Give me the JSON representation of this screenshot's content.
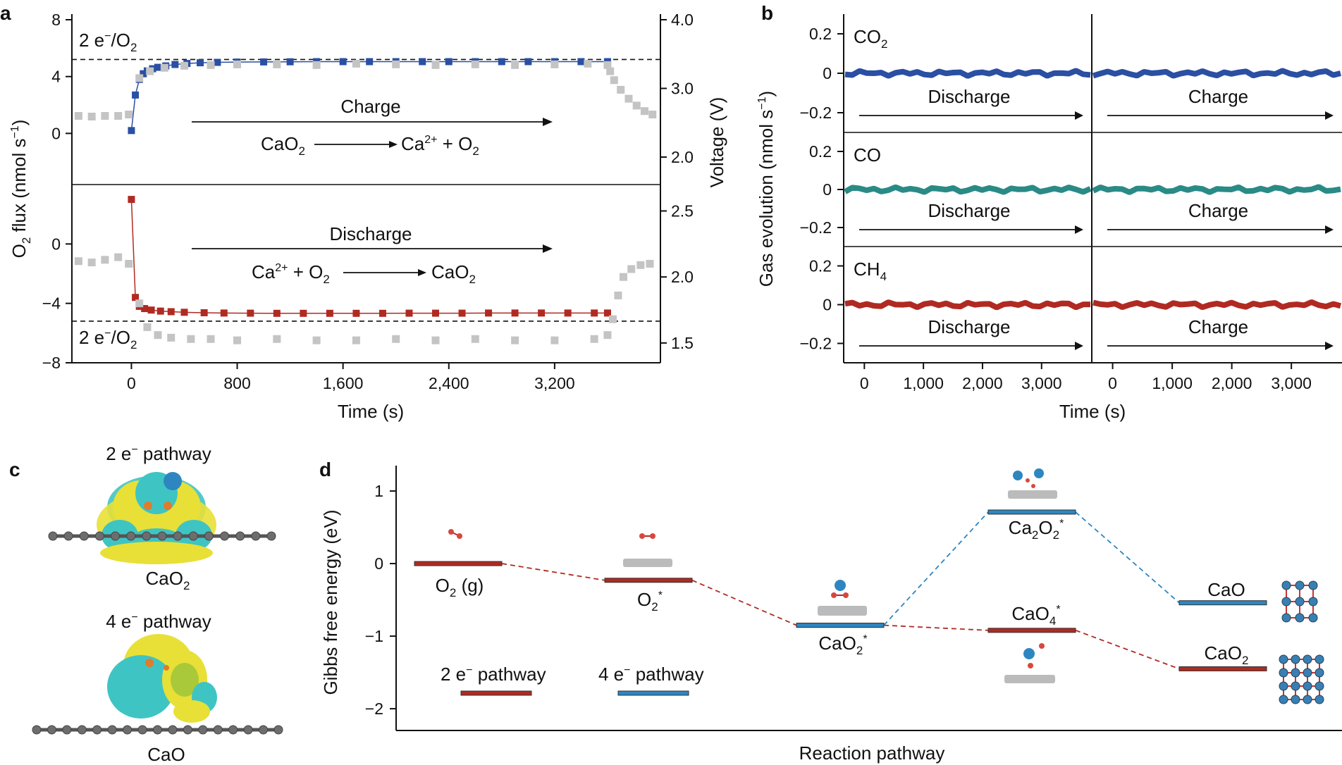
{
  "figure": {
    "panel_letters": [
      "a",
      "b",
      "c",
      "d"
    ],
    "colors": {
      "blue": "#2a4fa3",
      "red": "#b02a22",
      "teal": "#2a8a86",
      "gray": "#c4c4c4",
      "light_blue": "#2e86c1",
      "sky": "#3aa8d8",
      "yellow": "#e8e036",
      "cyan": "#3fc4c4"
    }
  },
  "panel_a": {
    "ylabel_left_main": "O",
    "ylabel_left_sub": "2",
    "ylabel_left_rest": " flux (nmol s",
    "ylabel_left_sup": "−1",
    "ylabel_left_close": ")",
    "ylabel_right": "Voltage (V)",
    "xlabel": "Time (s)",
    "ref_label_main": "2 e",
    "ref_label_sup": "−",
    "ref_label_rest": "/O",
    "ref_label_sub": "2",
    "top": {
      "arrow_label": "Charge",
      "reaction_left_main": "CaO",
      "reaction_left_sub": "2",
      "reaction_right_main": "Ca",
      "reaction_right_sup": "2+",
      "reaction_right_rest": " + O",
      "reaction_right_sub": "2"
    },
    "bottom": {
      "arrow_label": "Discharge",
      "reaction_left_main": "Ca",
      "reaction_left_sup": "2+",
      "reaction_left_rest": " + O",
      "reaction_left_sub": "2",
      "reaction_right_main": "CaO",
      "reaction_right_sub": "2"
    }
  },
  "panel_b": {
    "ylabel": "Gas evolution (nmol s",
    "ylabel_sup": "−1",
    "ylabel_close": ")",
    "xlabel": "Time (s)",
    "gases": [
      {
        "main": "CO",
        "sub": "2"
      },
      {
        "main": "CO",
        "sub": ""
      },
      {
        "main": "CH",
        "sub": "4"
      }
    ],
    "discharge_label": "Discharge",
    "charge_label": "Charge"
  },
  "panel_c": {
    "title_2e_main": "2 e",
    "title_2e_sup": "−",
    "title_2e_rest": " pathway",
    "label_2e_main": "CaO",
    "label_2e_sub": "2",
    "title_4e_main": "4 e",
    "title_4e_sup": "−",
    "title_4e_rest": " pathway",
    "label_4e": "CaO"
  },
  "panel_d": {
    "ylabel": "Gibbs free energy (eV)",
    "xlabel": "Reaction pathway",
    "legend": [
      {
        "main": "2 e",
        "sup": "−",
        "rest": " pathway"
      },
      {
        "main": "4 e",
        "sup": "−",
        "rest": " pathway"
      }
    ],
    "states": [
      {
        "main": "O",
        "sub": "2",
        "rest": " (g)",
        "sup": ""
      },
      {
        "main": "O",
        "sub": "2",
        "rest": "",
        "sup": "*"
      },
      {
        "main": "CaO",
        "sub": "2",
        "rest": "",
        "sup": "*"
      },
      {
        "main": "Ca",
        "sub": "2",
        "rest": "O",
        "sub2": "2",
        "sup": "*"
      },
      {
        "main": "CaO",
        "sub": "4",
        "rest": "",
        "sup": "*"
      },
      {
        "main": "CaO",
        "sub": "",
        "rest": "",
        "sup": ""
      },
      {
        "main": "CaO",
        "sub": "2",
        "rest": "",
        "sup": ""
      }
    ]
  },
  "chart_data": [
    {
      "type": "scatter",
      "panel": "a-top",
      "x_range": [
        -450,
        4000
      ],
      "xticks": [
        0,
        800,
        1600,
        2400,
        3200
      ],
      "xtick_labels": [
        "0",
        "800",
        "1,600",
        "2,400",
        "3,200"
      ],
      "y_range": [
        -3.6,
        8
      ],
      "yticks": [
        0,
        4,
        8
      ],
      "ytick_labels": [
        "0",
        "4",
        "8"
      ],
      "y2_range": [
        1.6,
        4.0
      ],
      "y2ticks": [
        2.0,
        3.0,
        4.0
      ],
      "y2tick_labels": [
        "2.0",
        "3.0",
        "4.0"
      ],
      "reference_line": 5.2,
      "series": [
        {
          "name": "O2 flux",
          "color": "blue",
          "axis": "left",
          "x": [
            0,
            30,
            60,
            90,
            120,
            160,
            200,
            260,
            330,
            420,
            520,
            650,
            800,
            1000,
            1200,
            1400,
            1600,
            1800,
            2000,
            2200,
            2400,
            2600,
            2800,
            3000,
            3200,
            3400,
            3600
          ],
          "y": [
            0.2,
            2.7,
            3.8,
            4.2,
            4.4,
            4.55,
            4.65,
            4.75,
            4.85,
            4.92,
            4.97,
            5.0,
            5.02,
            5.03,
            5.04,
            5.05,
            5.05,
            5.05,
            5.05,
            5.05,
            5.05,
            5.05,
            5.05,
            5.05,
            5.05,
            5.05,
            5.05
          ]
        },
        {
          "name": "Voltage",
          "color": "gray",
          "axis": "right",
          "x": [
            -400,
            -300,
            -200,
            -100,
            -20,
            60,
            140,
            250,
            400,
            600,
            800,
            1100,
            1400,
            1700,
            2000,
            2300,
            2600,
            2900,
            3200,
            3450,
            3600,
            3620,
            3650,
            3700,
            3760,
            3820,
            3880,
            3940
          ],
          "y": [
            2.6,
            2.59,
            2.6,
            2.6,
            2.62,
            3.15,
            3.25,
            3.3,
            3.33,
            3.34,
            3.35,
            3.35,
            3.34,
            3.36,
            3.35,
            3.34,
            3.35,
            3.34,
            3.35,
            3.36,
            3.34,
            3.25,
            3.12,
            2.98,
            2.85,
            2.75,
            2.67,
            2.62
          ]
        }
      ]
    },
    {
      "type": "scatter",
      "panel": "a-bottom",
      "x_range": [
        -450,
        4000
      ],
      "y_range": [
        -8,
        4
      ],
      "yticks": [
        -8,
        -4,
        0
      ],
      "ytick_labels": [
        "−8",
        "−4",
        "0"
      ],
      "y2_range": [
        1.35,
        2.7
      ],
      "y2ticks": [
        1.5,
        2.0,
        2.5
      ],
      "y2tick_labels": [
        "1.5",
        "2.0",
        "2.5"
      ],
      "reference_line": -5.2,
      "series": [
        {
          "name": "O2 flux",
          "color": "red",
          "axis": "left",
          "x": [
            0,
            30,
            60,
            100,
            150,
            220,
            300,
            400,
            550,
            700,
            900,
            1100,
            1300,
            1500,
            1700,
            1900,
            2100,
            2300,
            2500,
            2700,
            2900,
            3100,
            3300,
            3500,
            3600
          ],
          "y": [
            3.0,
            -3.6,
            -4.2,
            -4.35,
            -4.45,
            -4.52,
            -4.56,
            -4.6,
            -4.63,
            -4.65,
            -4.66,
            -4.67,
            -4.67,
            -4.67,
            -4.67,
            -4.67,
            -4.66,
            -4.66,
            -4.66,
            -4.65,
            -4.65,
            -4.65,
            -4.65,
            -4.65,
            -4.65
          ]
        },
        {
          "name": "Voltage",
          "color": "gray",
          "axis": "right",
          "x": [
            -400,
            -300,
            -200,
            -100,
            -20,
            60,
            120,
            200,
            300,
            450,
            600,
            800,
            1100,
            1400,
            1700,
            2000,
            2300,
            2600,
            2900,
            3200,
            3500,
            3600,
            3640,
            3680,
            3720,
            3780,
            3850,
            3920
          ],
          "y": [
            2.12,
            2.11,
            2.13,
            2.15,
            2.1,
            1.8,
            1.62,
            1.56,
            1.54,
            1.53,
            1.53,
            1.52,
            1.53,
            1.52,
            1.52,
            1.53,
            1.52,
            1.53,
            1.52,
            1.52,
            1.53,
            1.56,
            1.68,
            1.86,
            2.0,
            2.06,
            2.09,
            2.1
          ]
        }
      ]
    },
    {
      "type": "line",
      "panel": "b",
      "x_sections": [
        {
          "phase": "Discharge",
          "x_range": [
            -350,
            3850
          ],
          "xticks": [
            0,
            1000,
            2000,
            3000
          ],
          "xtick_labels": [
            "0",
            "1,000",
            "2,000",
            "3,000"
          ]
        },
        {
          "phase": "Charge",
          "x_range": [
            -350,
            3850
          ],
          "xticks": [
            0,
            1000,
            2000,
            3000
          ],
          "xtick_labels": [
            "0",
            "1,000",
            "2,000",
            "3,000"
          ]
        }
      ],
      "y_range": [
        -0.3,
        0.3
      ],
      "yticks": [
        -0.2,
        0,
        0.2
      ],
      "ytick_labels": [
        "−0.2",
        "0",
        "0.2"
      ],
      "series": [
        {
          "name": "CO2",
          "color": "blue",
          "mean_value": 0
        },
        {
          "name": "CO",
          "color": "teal",
          "mean_value": 0
        },
        {
          "name": "CH4",
          "color": "red",
          "mean_value": 0
        }
      ]
    },
    {
      "type": "line",
      "panel": "d",
      "y_range": [
        -2.3,
        1.35
      ],
      "yticks": [
        -2,
        -1,
        0,
        1
      ],
      "ytick_labels": [
        "−2",
        "−1",
        "0",
        "1"
      ],
      "categories": [
        "O2 (g)",
        "O2*",
        "CaO2*",
        "Ca2O2*",
        "CaO4*",
        "CaO",
        "CaO2"
      ],
      "series": [
        {
          "name": "2 e− pathway",
          "color": "red",
          "points": [
            [
              "O2 (g)",
              0.0
            ],
            [
              "O2*",
              -0.23
            ],
            [
              "CaO2*",
              -0.85
            ],
            [
              "CaO4*",
              -0.92
            ],
            [
              "CaO2",
              -1.45
            ]
          ]
        },
        {
          "name": "4 e− pathway",
          "color": "light_blue",
          "points": [
            [
              "CaO2*",
              -0.85
            ],
            [
              "Ca2O2*",
              0.71
            ],
            [
              "CaO",
              -0.54
            ]
          ]
        }
      ]
    }
  ]
}
